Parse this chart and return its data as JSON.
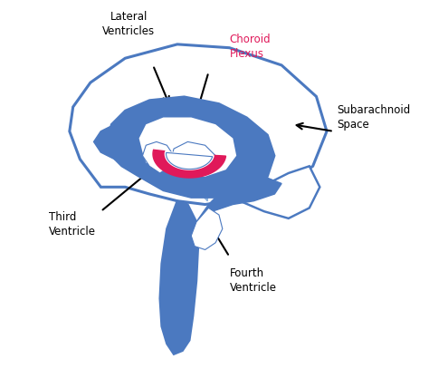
{
  "background_color": "#ffffff",
  "brain_outline_color": "#4b79c0",
  "ventricle_fill_color": "#4b79c0",
  "choroid_color": "#e0195a",
  "flow_arrow_color": "#8ab0dc",
  "figsize": [
    4.74,
    4.28
  ],
  "dpi": 100,
  "label_lateral": "Lateral\nVentricles",
  "label_choroid": "Choroid\nPlexus",
  "label_subarachnoid": "Subarachnoid\nSpace",
  "label_third": "Third\nVentricle",
  "label_fourth": "Fourth\nVentricle",
  "lw_brain": 2.2
}
